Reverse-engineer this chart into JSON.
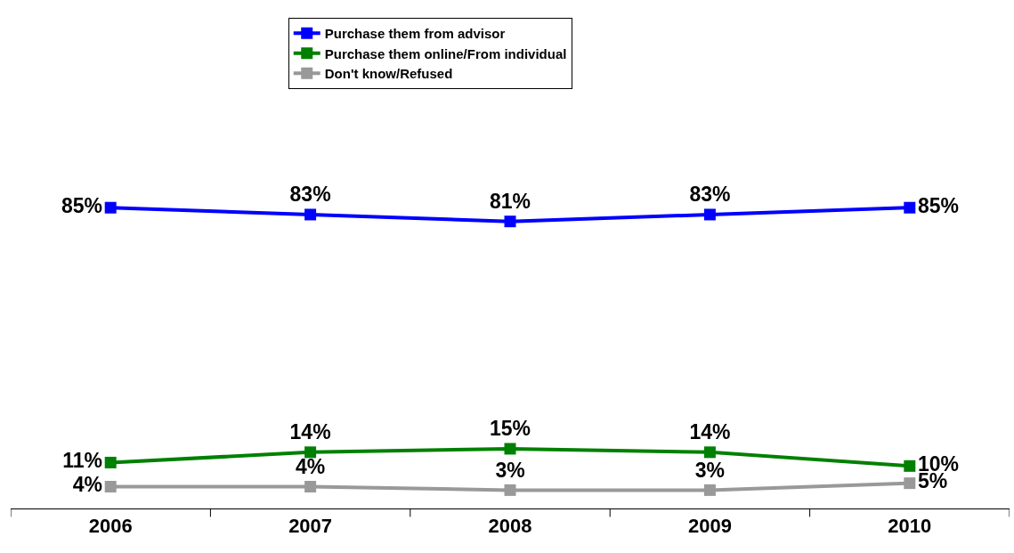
{
  "chart_data": {
    "type": "line",
    "categories": [
      "2006",
      "2007",
      "2008",
      "2009",
      "2010"
    ],
    "series": [
      {
        "name": "Purchase them from advisor",
        "color": "#0000ff",
        "values": [
          85,
          83,
          81,
          83,
          85
        ],
        "value_labels": [
          "85%",
          "83%",
          "81%",
          "83%",
          "85%"
        ]
      },
      {
        "name": "Purchase them online/From individual",
        "color": "#008000",
        "values": [
          11,
          14,
          15,
          14,
          10
        ],
        "value_labels": [
          "11%",
          "14%",
          "15%",
          "14%",
          "10%"
        ]
      },
      {
        "name": "Don't know/Refused",
        "color": "#999999",
        "values": [
          4,
          4,
          3,
          3,
          5
        ],
        "value_labels": [
          "4%",
          "4%",
          "3%",
          "3%",
          "5%"
        ]
      }
    ],
    "marker": "square",
    "line_style": "solid",
    "legend": "top",
    "grid": false,
    "tick_labels": "x"
  }
}
